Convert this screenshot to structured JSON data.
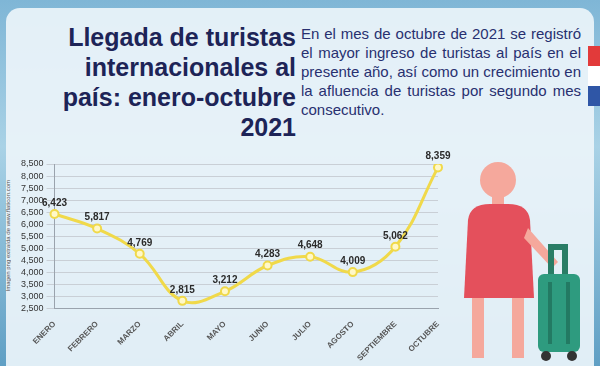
{
  "chart_data": {
    "type": "line",
    "title": "Llegada de turistas internacionales al país: enero-octubre 2021",
    "subtitle": "En el mes de octubre de 2021 se registró el mayor ingreso de turistas al país en el presente año, así como un crecimiento en la afluencia de turistas por segundo mes consecutivo.",
    "annotations": [
      "Imagen png extraída de www.flaticon.com"
    ],
    "categories": [
      "ENERO",
      "FEBRERO",
      "MARZO",
      "ABRIL",
      "MAYO",
      "JUNIO",
      "JULIO",
      "AGOSTO",
      "SEPTIEMBRE",
      "OCTUBRE"
    ],
    "values": [
      6423,
      5817,
      4769,
      2815,
      3212,
      4283,
      4648,
      4009,
      5062,
      8359
    ],
    "value_labels": [
      "6,423",
      "5,817",
      "4,769",
      "2,815",
      "3,212",
      "4,283",
      "4,648",
      "4,009",
      "5,062",
      "8,359"
    ],
    "color": "#f0d94a",
    "marker": "circle",
    "ylim": [
      2500,
      8500
    ],
    "yticks": [
      {
        "value": 2500,
        "label": "2,500"
      },
      {
        "value": 3000,
        "label": "3,000"
      },
      {
        "value": 3500,
        "label": "3,500"
      },
      {
        "value": 4000,
        "label": "4,000"
      },
      {
        "value": 4500,
        "label": "4,500"
      },
      {
        "value": 5000,
        "label": "5,000"
      },
      {
        "value": 5500,
        "label": "5,500"
      },
      {
        "value": 6000,
        "label": "6,000"
      },
      {
        "value": 6500,
        "label": "6,500"
      },
      {
        "value": 7000,
        "label": "7,000"
      },
      {
        "value": 7500,
        "label": "7,500"
      },
      {
        "value": 8000,
        "label": "8,000"
      },
      {
        "value": 8500,
        "label": "8,500"
      }
    ],
    "grid": true,
    "data_labels": true
  }
}
